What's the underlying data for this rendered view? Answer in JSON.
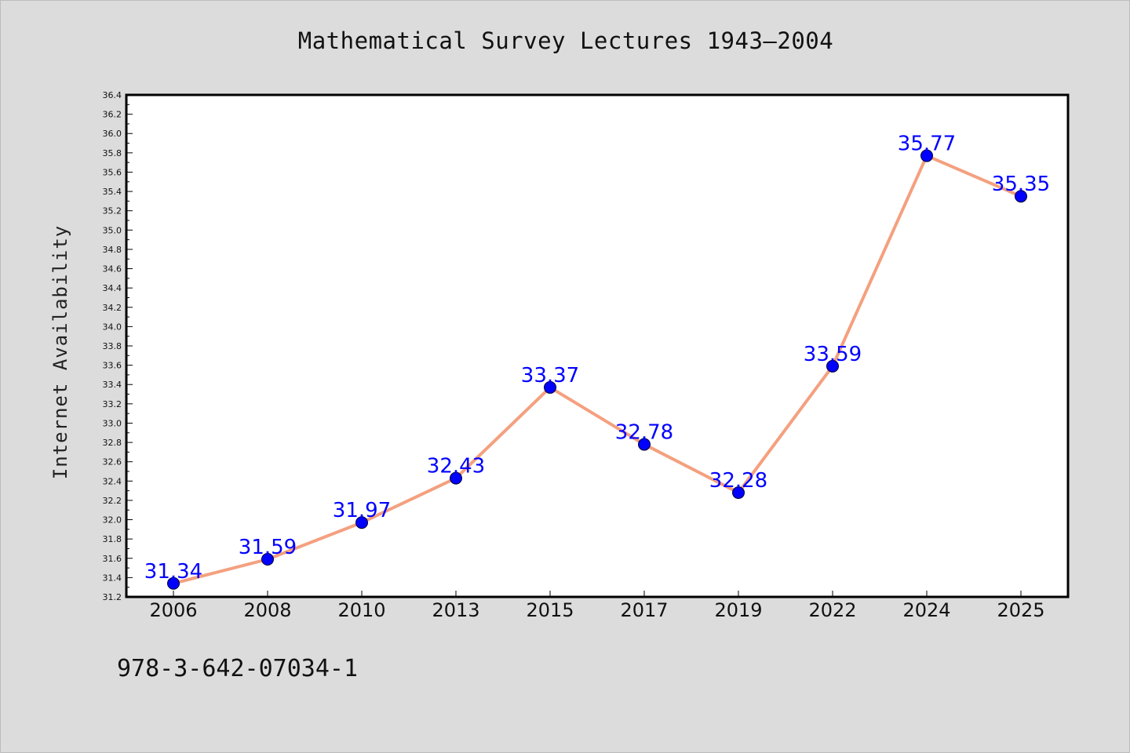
{
  "chart_data": {
    "type": "line",
    "title": "Mathematical Survey Lectures 1943–2004",
    "xlabel": "",
    "ylabel": "Internet Availability",
    "categories": [
      "2006",
      "2008",
      "2010",
      "2013",
      "2015",
      "2017",
      "2019",
      "2022",
      "2024",
      "2025"
    ],
    "values": [
      31.34,
      31.59,
      31.97,
      32.43,
      33.37,
      32.78,
      32.28,
      33.59,
      35.77,
      35.35
    ],
    "data_labels": [
      "31.34",
      "31.59",
      "31.97",
      "32.43",
      "33.37",
      "32.78",
      "32.28",
      "33.59",
      "35.77",
      "35.35"
    ],
    "ylim": [
      31.2,
      36.4
    ],
    "yticks": [
      "31.2",
      "31.4",
      "31.6",
      "31.8",
      "32.0",
      "32.2",
      "32.4",
      "32.6",
      "32.8",
      "33.0",
      "33.2",
      "33.4",
      "33.6",
      "33.8",
      "34.0",
      "34.2",
      "34.4",
      "34.6",
      "34.8",
      "35.0",
      "35.2",
      "35.4",
      "35.6",
      "35.8",
      "36.0",
      "36.2",
      "36.4"
    ],
    "grid": false,
    "line_color": "#f4a07f",
    "marker_color": "#0000ff",
    "label_color": "#0000ff"
  },
  "footer": {
    "isbn": "978-3-642-07034-1"
  }
}
